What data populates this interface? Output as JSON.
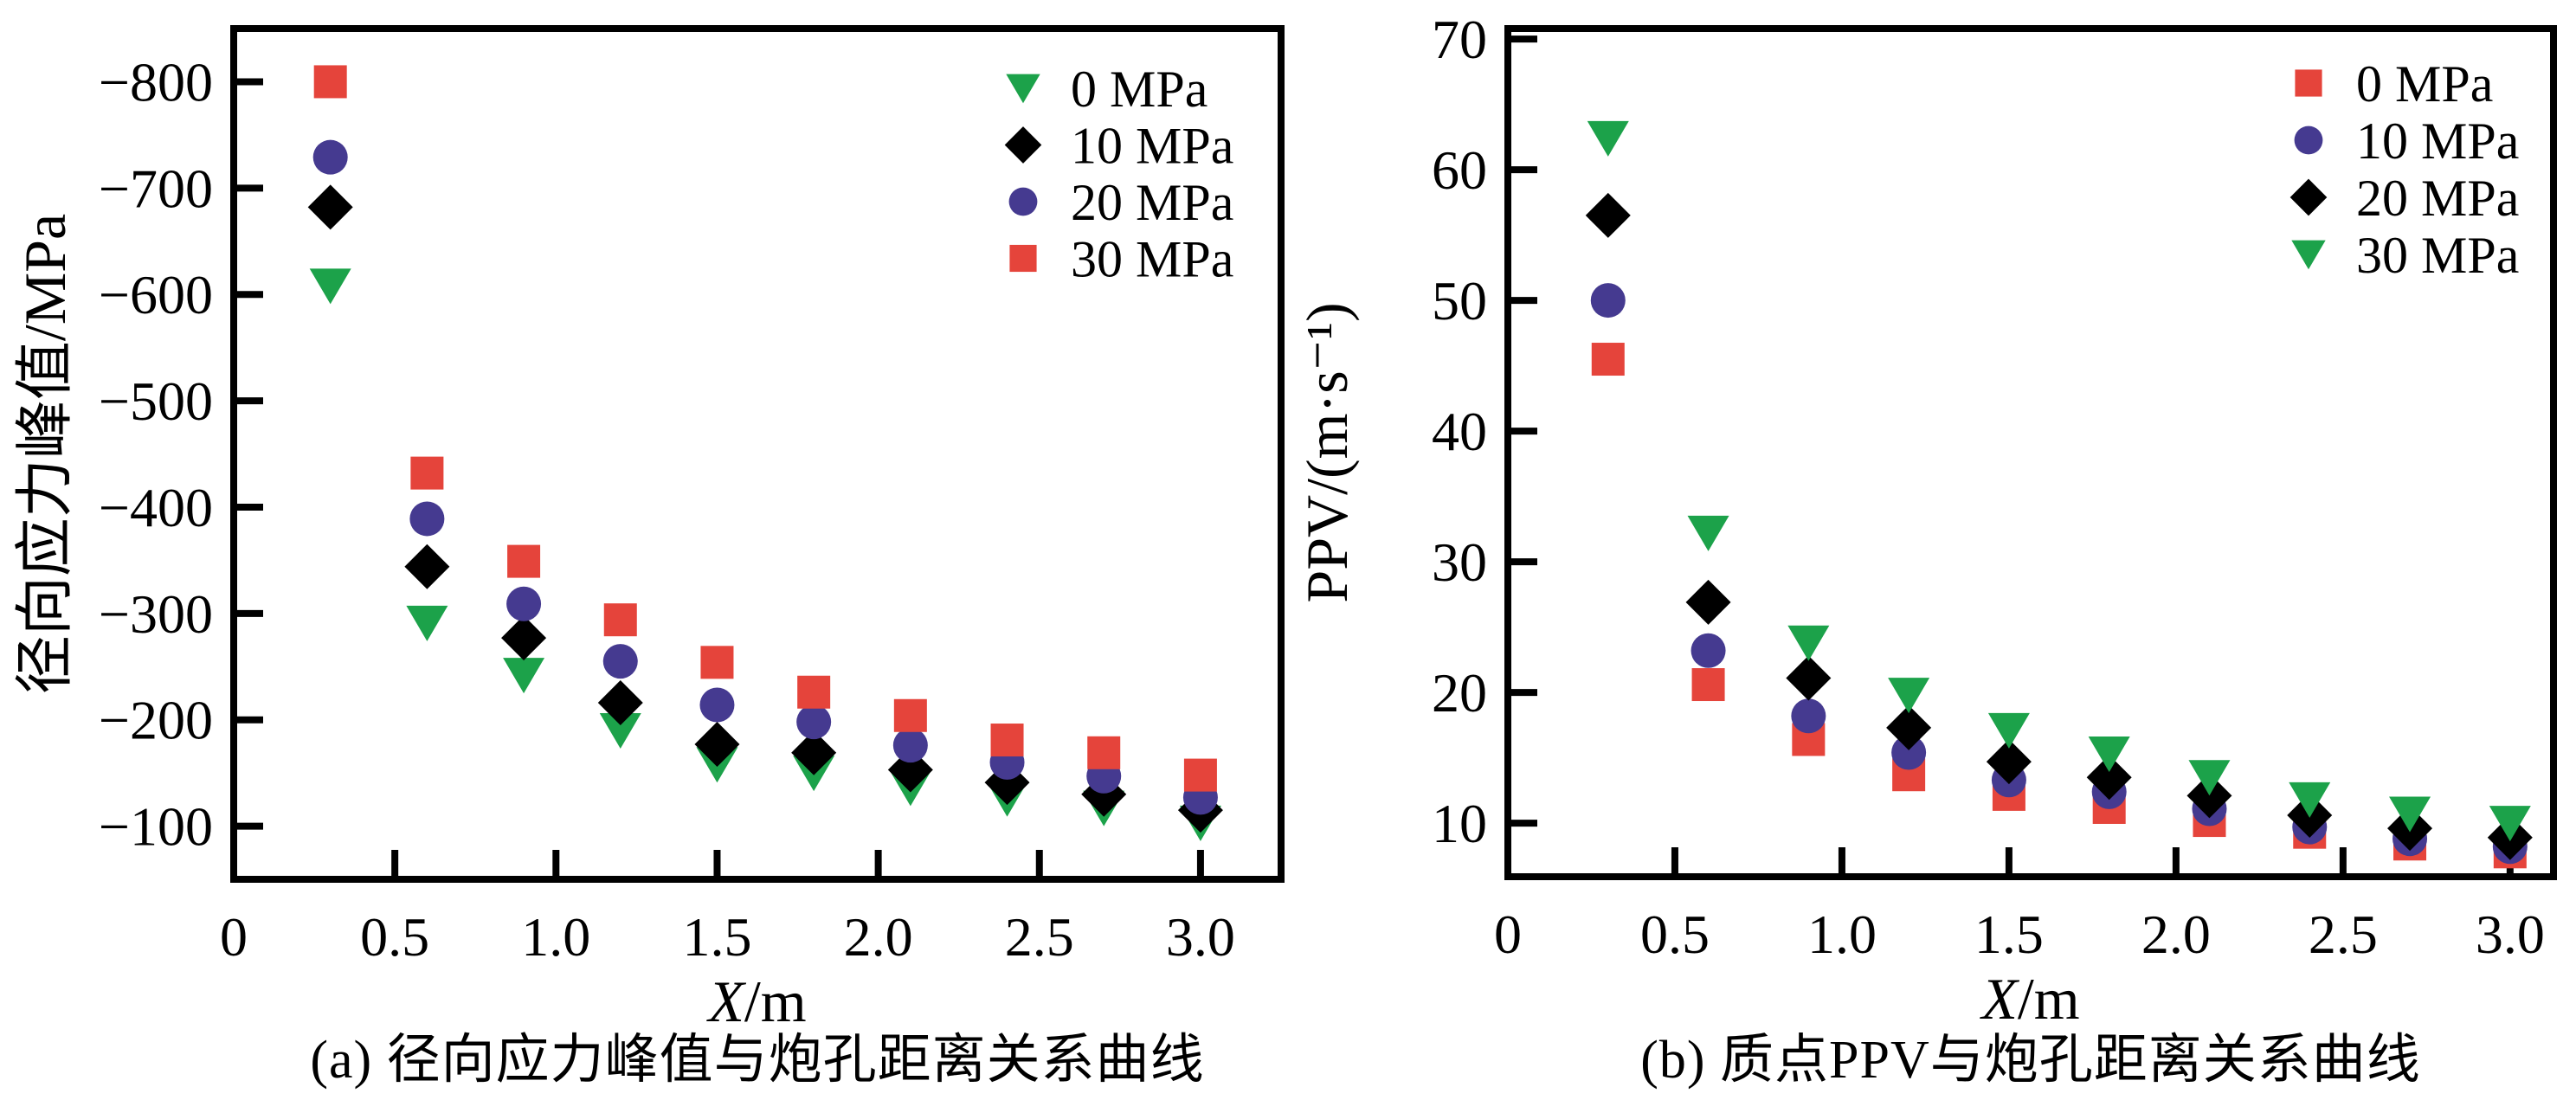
{
  "figure": {
    "background": "#ffffff",
    "panels": [
      {
        "id": "a",
        "caption": "(a) 径向应力峰值与炮孔距离关系曲线",
        "x_title": "X/m",
        "y_title": "径向应力峰值/MPa",
        "x_tick_labels": [
          "0.5",
          "1.0",
          "1.5",
          "2.0",
          "2.5",
          "3.0"
        ],
        "x_origin_label": "0",
        "y_tick_labels": [
          "−800",
          "−700",
          "−600",
          "−500",
          "−400",
          "−300",
          "−200",
          "−100"
        ],
        "legend_labels": [
          "0 MPa",
          "10 MPa",
          "20 MPa",
          "30 MPa"
        ]
      },
      {
        "id": "b",
        "caption": "(b) 质点PPV与炮孔距离关系曲线",
        "x_title": "X/m",
        "y_title": "PPV/(m·s⁻¹)",
        "x_tick_labels": [
          "0.5",
          "1.0",
          "1.5",
          "2.0",
          "2.5",
          "3.0"
        ],
        "x_origin_label": "0",
        "y_tick_labels": [
          "70",
          "60",
          "50",
          "40",
          "30",
          "20",
          "10"
        ],
        "legend_labels": [
          "0 MPa",
          "10 MPa",
          "20 MPa",
          "30 MPa"
        ]
      }
    ],
    "colors": {
      "red": "#E5443B",
      "blue": "#453A90",
      "black": "#000000",
      "green": "#1CA24A",
      "axis": "#000000"
    }
  },
  "chart_data": [
    {
      "type": "scatter",
      "title": "(a) 径向应力峰值与炮孔距离关系曲线",
      "xlabel": "X/m",
      "ylabel": "径向应力峰值/MPa",
      "grid": false,
      "legend_position": "top-right",
      "x": [
        0.3,
        0.6,
        0.9,
        1.2,
        1.5,
        1.8,
        2.1,
        2.4,
        2.7,
        3.0
      ],
      "xlim": [
        0,
        3.25
      ],
      "ylim": [
        -850,
        -50
      ],
      "y_reversed": true,
      "xticks": [
        0.5,
        1.0,
        1.5,
        2.0,
        2.5,
        3.0
      ],
      "yticks": [
        -800,
        -700,
        -600,
        -500,
        -400,
        -300,
        -200,
        -100
      ],
      "series": [
        {
          "name": "0 MPa",
          "marker": "triangle-down",
          "color": "#1CA24A",
          "values": [
            -608,
            -291,
            -242,
            -190,
            -158,
            -150,
            -136,
            -126,
            -117,
            -103
          ]
        },
        {
          "name": "10 MPa",
          "marker": "diamond",
          "color": "#000000",
          "values": [
            -682,
            -344,
            -277,
            -216,
            -177,
            -169,
            -153,
            -141,
            -130,
            -115
          ]
        },
        {
          "name": "20 MPa",
          "marker": "circle",
          "color": "#453A90",
          "values": [
            -729,
            -389,
            -309,
            -255,
            -214,
            -198,
            -176,
            -160,
            -147,
            -127
          ]
        },
        {
          "name": "30 MPa",
          "marker": "square",
          "color": "#E5443B",
          "values": [
            -800,
            -432,
            -349,
            -294,
            -254,
            -226,
            -204,
            -181,
            -169,
            -148
          ]
        }
      ]
    },
    {
      "type": "scatter",
      "title": "(b) 质点PPV与炮孔距离关系曲线",
      "xlabel": "X/m",
      "ylabel": "PPV/(m·s⁻¹)",
      "grid": false,
      "legend_position": "top-right",
      "x": [
        0.3,
        0.6,
        0.9,
        1.2,
        1.5,
        1.8,
        2.1,
        2.4,
        2.7,
        3.0
      ],
      "xlim": [
        0,
        3.13
      ],
      "ylim": [
        5.9,
        70.8
      ],
      "y_reversed": false,
      "xticks": [
        0.5,
        1.0,
        1.5,
        2.0,
        2.5,
        3.0
      ],
      "yticks": [
        70,
        60,
        50,
        40,
        30,
        20,
        10
      ],
      "series": [
        {
          "name": "0 MPa",
          "marker": "square",
          "color": "#E5443B",
          "values": [
            45.5,
            20.6,
            16.4,
            13.7,
            12.2,
            11.2,
            10.2,
            9.3,
            8.4,
            7.8
          ]
        },
        {
          "name": "10 MPa",
          "marker": "circle",
          "color": "#453A90",
          "values": [
            50.0,
            23.2,
            18.2,
            15.4,
            13.3,
            12.4,
            11.1,
            9.7,
            8.8,
            8.2
          ]
        },
        {
          "name": "20 MPa",
          "marker": "diamond",
          "color": "#000000",
          "values": [
            56.5,
            26.9,
            21.1,
            17.3,
            14.7,
            13.5,
            12.1,
            10.6,
            9.6,
            8.9
          ]
        },
        {
          "name": "30 MPa",
          "marker": "triangle-down",
          "color": "#1CA24A",
          "values": [
            62.4,
            32.2,
            23.8,
            19.8,
            17.1,
            15.3,
            13.5,
            11.8,
            10.7,
            10.0
          ]
        }
      ]
    }
  ]
}
